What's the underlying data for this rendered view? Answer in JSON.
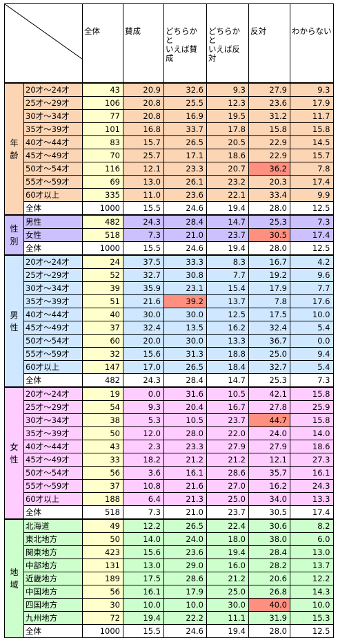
{
  "headers": [
    "全体",
    "賛成",
    "どちらかと\nいえば賛成",
    "どちらかと\nいえば反対",
    "反対",
    "わからない"
  ],
  "colors": {
    "age": "#fcd5b4",
    "gender": "#ccc0ff",
    "male": "#cfe8ff",
    "female": "#ffccff",
    "region": "#ccffcc",
    "number_col": "#ffffcc",
    "total_row": "#ffffff",
    "highlight": "#ff8f7f"
  },
  "groups": [
    {
      "key": "age",
      "label": "年\n齢",
      "rows": [
        {
          "label": "20才～24才",
          "values": [
            "43",
            "20.9",
            "32.6",
            "9.3",
            "27.9",
            "9.3"
          ]
        },
        {
          "label": "25才～29才",
          "values": [
            "106",
            "20.8",
            "25.5",
            "12.3",
            "23.6",
            "17.9"
          ]
        },
        {
          "label": "30才～34才",
          "values": [
            "77",
            "20.8",
            "16.9",
            "19.5",
            "31.2",
            "11.7"
          ]
        },
        {
          "label": "35才～39才",
          "values": [
            "101",
            "16.8",
            "33.7",
            "17.8",
            "15.8",
            "15.8"
          ]
        },
        {
          "label": "40才～44才",
          "values": [
            "83",
            "15.7",
            "26.5",
            "20.5",
            "22.9",
            "14.5"
          ]
        },
        {
          "label": "45才～49才",
          "values": [
            "70",
            "25.7",
            "17.1",
            "18.6",
            "22.9",
            "15.7"
          ]
        },
        {
          "label": "50才～54才",
          "values": [
            "116",
            "12.1",
            "23.3",
            "20.7",
            "36.2",
            "7.8"
          ],
          "highlight": 4
        },
        {
          "label": "55才～59才",
          "values": [
            "69",
            "13.0",
            "26.1",
            "23.2",
            "20.3",
            "17.4"
          ]
        },
        {
          "label": "60才以上",
          "values": [
            "335",
            "11.0",
            "23.6",
            "22.1",
            "33.4",
            "9.9"
          ]
        },
        {
          "label": "全体",
          "values": [
            "1000",
            "15.5",
            "24.6",
            "19.4",
            "28.0",
            "12.5"
          ],
          "total": true
        }
      ]
    },
    {
      "key": "gender",
      "label": "性\n別",
      "rows": [
        {
          "label": "男性",
          "values": [
            "482",
            "24.3",
            "28.4",
            "14.7",
            "25.3",
            "7.3"
          ]
        },
        {
          "label": "女性",
          "values": [
            "518",
            "7.3",
            "21.0",
            "23.7",
            "30.5",
            "17.4"
          ],
          "highlight": 4
        },
        {
          "label": "全体",
          "values": [
            "1000",
            "15.5",
            "24.6",
            "19.4",
            "28.0",
            "12.5"
          ],
          "total": true
        }
      ]
    },
    {
      "key": "male",
      "label": "男\n性",
      "rows": [
        {
          "label": "20才～24才",
          "values": [
            "24",
            "37.5",
            "33.3",
            "8.3",
            "16.7",
            "4.2"
          ]
        },
        {
          "label": "25才～29才",
          "values": [
            "52",
            "32.7",
            "30.8",
            "7.7",
            "19.2",
            "9.6"
          ]
        },
        {
          "label": "30才～34才",
          "values": [
            "39",
            "35.9",
            "23.1",
            "15.4",
            "17.9",
            "7.7"
          ]
        },
        {
          "label": "35才～39才",
          "values": [
            "51",
            "21.6",
            "39.2",
            "13.7",
            "7.8",
            "17.6"
          ],
          "highlight": 2
        },
        {
          "label": "40才～44才",
          "values": [
            "40",
            "30.0",
            "30.0",
            "12.5",
            "17.5",
            "10.0"
          ]
        },
        {
          "label": "45才～49才",
          "values": [
            "37",
            "32.4",
            "13.5",
            "16.2",
            "32.4",
            "5.4"
          ]
        },
        {
          "label": "50才～54才",
          "values": [
            "60",
            "20.0",
            "30.0",
            "13.3",
            "36.7",
            "0.0"
          ]
        },
        {
          "label": "55才～59才",
          "values": [
            "32",
            "15.6",
            "31.3",
            "18.8",
            "25.0",
            "9.4"
          ]
        },
        {
          "label": "60才以上",
          "values": [
            "147",
            "17.0",
            "26.5",
            "18.4",
            "32.7",
            "5.4"
          ]
        },
        {
          "label": "全体",
          "values": [
            "482",
            "24.3",
            "28.4",
            "14.7",
            "25.3",
            "7.3"
          ],
          "total": true
        }
      ]
    },
    {
      "key": "female",
      "label": "女\n性",
      "rows": [
        {
          "label": "20才～24才",
          "values": [
            "19",
            "0.0",
            "31.6",
            "10.5",
            "42.1",
            "15.8"
          ]
        },
        {
          "label": "25才～29才",
          "values": [
            "54",
            "9.3",
            "20.4",
            "16.7",
            "27.8",
            "25.9"
          ]
        },
        {
          "label": "30才～34才",
          "values": [
            "38",
            "5.3",
            "10.5",
            "23.7",
            "44.7",
            "15.8"
          ],
          "highlight": 4
        },
        {
          "label": "35才～39才",
          "values": [
            "50",
            "12.0",
            "28.0",
            "22.0",
            "24.0",
            "14.0"
          ]
        },
        {
          "label": "40才～44才",
          "values": [
            "43",
            "2.3",
            "23.3",
            "27.9",
            "27.9",
            "18.6"
          ]
        },
        {
          "label": "45才～49才",
          "values": [
            "33",
            "18.2",
            "21.2",
            "21.2",
            "12.1",
            "27.3"
          ]
        },
        {
          "label": "50才～54才",
          "values": [
            "56",
            "3.6",
            "16.1",
            "28.6",
            "35.7",
            "16.1"
          ]
        },
        {
          "label": "55才～59才",
          "values": [
            "37",
            "10.8",
            "21.6",
            "27.0",
            "16.2",
            "24.3"
          ]
        },
        {
          "label": "60才以上",
          "values": [
            "188",
            "6.4",
            "21.3",
            "25.0",
            "34.0",
            "13.3"
          ]
        },
        {
          "label": "全体",
          "values": [
            "518",
            "7.3",
            "21.0",
            "23.7",
            "30.5",
            "17.4"
          ],
          "total": true
        }
      ]
    },
    {
      "key": "region",
      "label": "地\n域",
      "rows": [
        {
          "label": "北海道",
          "values": [
            "49",
            "12.2",
            "26.5",
            "22.4",
            "30.6",
            "8.2"
          ]
        },
        {
          "label": "東北地方",
          "values": [
            "50",
            "14.0",
            "24.0",
            "18.0",
            "38.0",
            "6.0"
          ]
        },
        {
          "label": "関東地方",
          "values": [
            "423",
            "15.6",
            "23.6",
            "19.4",
            "28.4",
            "13.0"
          ]
        },
        {
          "label": "中部地方",
          "values": [
            "131",
            "13.0",
            "29.0",
            "16.0",
            "28.2",
            "13.7"
          ]
        },
        {
          "label": "近畿地方",
          "values": [
            "189",
            "17.5",
            "28.6",
            "21.2",
            "20.6",
            "12.2"
          ]
        },
        {
          "label": "中国地方",
          "values": [
            "56",
            "16.1",
            "17.9",
            "25.0",
            "26.8",
            "14.3"
          ]
        },
        {
          "label": "四国地方",
          "values": [
            "30",
            "10.0",
            "10.0",
            "30.0",
            "40.0",
            "10.0"
          ],
          "highlight": 4
        },
        {
          "label": "九州地方",
          "values": [
            "72",
            "19.4",
            "22.2",
            "11.1",
            "31.9",
            "15.3"
          ]
        },
        {
          "label": "全体",
          "values": [
            "1000",
            "15.5",
            "24.6",
            "19.4",
            "28.0",
            "12.5"
          ],
          "total": true
        }
      ]
    }
  ]
}
